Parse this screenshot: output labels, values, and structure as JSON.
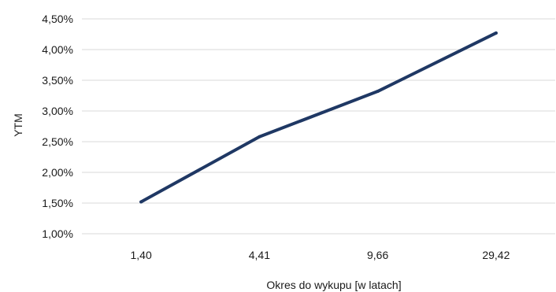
{
  "chart_data": {
    "type": "line",
    "categories": [
      "1,40",
      "4,41",
      "9,66",
      "29,42"
    ],
    "series": [
      {
        "values": [
          1.52,
          2.58,
          3.32,
          4.27
        ],
        "color": "#1f3864"
      }
    ],
    "xlabel": "Okres do wykupu [w latach]",
    "ylabel": "YTM",
    "ylim": [
      1.0,
      4.5
    ],
    "yticks": [
      1.0,
      1.5,
      2.0,
      2.5,
      3.0,
      3.5,
      4.0,
      4.5
    ],
    "ytick_labels": [
      "1,00%",
      "1,50%",
      "2,00%",
      "2,50%",
      "3,00%",
      "3,50%",
      "4,00%",
      "4,50%"
    ],
    "grid": "horizontal",
    "legend": "none"
  }
}
